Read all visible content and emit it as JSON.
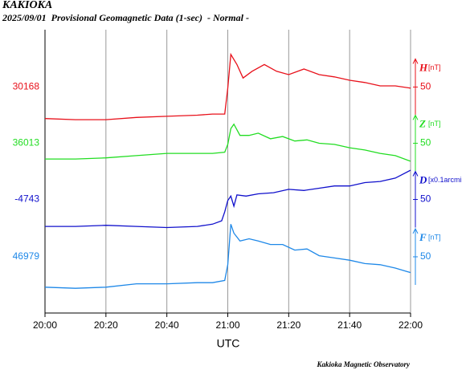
{
  "chart_data": {
    "type": "line",
    "station": "KAKIOKA",
    "title": "2025/09/01  Provisional Geomagnetic Data (1-sec)  - Normal -",
    "xlabel": "UTC",
    "footer": "Kakioka Magnetic Observatory",
    "xlim": [
      0,
      120
    ],
    "xticks": [
      {
        "value": 0,
        "label": "20:00"
      },
      {
        "value": 20,
        "label": "20:20"
      },
      {
        "value": 40,
        "label": "20:40"
      },
      {
        "value": 60,
        "label": "21:00"
      },
      {
        "value": 80,
        "label": "21:20"
      },
      {
        "value": 100,
        "label": "21:40"
      },
      {
        "value": 120,
        "label": "22:00"
      }
    ],
    "grid": true,
    "series": [
      {
        "name": "H",
        "unit": "[nT]",
        "color": "#e8101a",
        "ylim": [
          29967,
          30219
        ],
        "yticks": [
          30168
        ],
        "scale": 50,
        "x": [
          0,
          10,
          20,
          30,
          40,
          50,
          55,
          59,
          60,
          61,
          63,
          65,
          68,
          72,
          76,
          80,
          85,
          90,
          95,
          100,
          105,
          110,
          115,
          120
        ],
        "values": [
          30140,
          30139,
          30139,
          30141,
          30142,
          30143,
          30144,
          30144,
          30167,
          30197,
          30188,
          30176,
          30182,
          30188,
          30182,
          30179,
          30184,
          30179,
          30177,
          30174,
          30172,
          30169,
          30169,
          30167
        ]
      },
      {
        "name": "Z",
        "unit": "[nT]",
        "color": "#22dd22",
        "ylim": [
          35862,
          36114
        ],
        "yticks": [
          36013
        ],
        "scale": 50,
        "x": [
          0,
          10,
          20,
          30,
          40,
          50,
          55,
          59,
          60,
          61,
          62,
          64,
          67,
          70,
          74,
          78,
          82,
          86,
          90,
          95,
          100,
          105,
          110,
          115,
          120
        ],
        "values": [
          35999,
          35999,
          36000,
          36002,
          36004,
          36004,
          36004,
          36005,
          36012,
          36026,
          36030,
          36020,
          36020,
          36022,
          36017,
          36019,
          36015,
          36016,
          36013,
          36012,
          36009,
          36007,
          36004,
          36002,
          35997
        ]
      },
      {
        "name": "D",
        "unit": "[x0.1arcmi",
        "color": "#1010cc",
        "ylim": [
          -4844,
          -4592
        ],
        "yticks": [
          -4743
        ],
        "scale": 50,
        "x": [
          0,
          10,
          20,
          30,
          40,
          50,
          55,
          58,
          59,
          60,
          61,
          62,
          63,
          66,
          70,
          75,
          80,
          85,
          90,
          95,
          100,
          105,
          110,
          115,
          120
        ],
        "values": [
          -4767,
          -4767,
          -4766,
          -4767,
          -4768,
          -4767,
          -4765,
          -4762,
          -4754,
          -4744,
          -4740,
          -4749,
          -4739,
          -4740,
          -4738,
          -4737,
          -4734,
          -4735,
          -4733,
          -4731,
          -4731,
          -4728,
          -4727,
          -4724,
          -4717
        ]
      },
      {
        "name": "F",
        "unit": "[nT]",
        "color": "#1e88e8",
        "ylim": [
          46929,
          47181
        ],
        "yticks": [
          46979
        ],
        "scale": 50,
        "x": [
          0,
          10,
          20,
          30,
          40,
          50,
          55,
          59,
          60,
          61,
          62,
          64,
          67,
          70,
          74,
          78,
          82,
          86,
          90,
          95,
          100,
          105,
          110,
          115,
          120
        ],
        "values": [
          46952,
          46951,
          46952,
          46955,
          46955,
          46956,
          46956,
          46958,
          46972,
          47008,
          47000,
          46993,
          46995,
          46993,
          46990,
          46990,
          46985,
          46986,
          46980,
          46978,
          46976,
          46973,
          46972,
          46969,
          46965
        ]
      }
    ]
  }
}
